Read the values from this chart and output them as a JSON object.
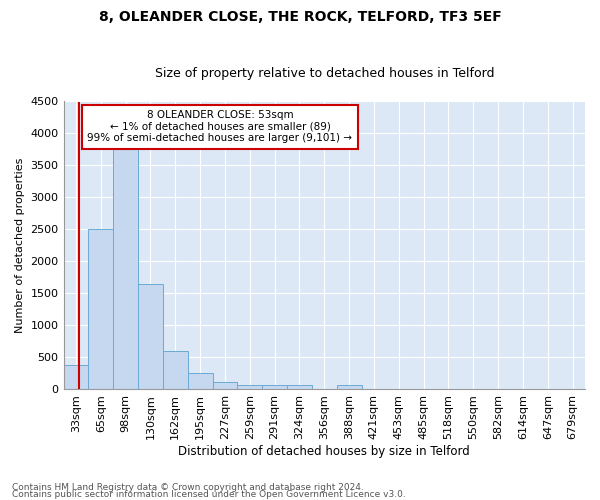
{
  "title": "8, OLEANDER CLOSE, THE ROCK, TELFORD, TF3 5EF",
  "subtitle": "Size of property relative to detached houses in Telford",
  "xlabel": "Distribution of detached houses by size in Telford",
  "ylabel": "Number of detached properties",
  "categories": [
    "33sqm",
    "65sqm",
    "98sqm",
    "130sqm",
    "162sqm",
    "195sqm",
    "227sqm",
    "259sqm",
    "291sqm",
    "324sqm",
    "356sqm",
    "388sqm",
    "421sqm",
    "453sqm",
    "485sqm",
    "518sqm",
    "550sqm",
    "582sqm",
    "614sqm",
    "647sqm",
    "679sqm"
  ],
  "values": [
    375,
    2500,
    3750,
    1650,
    600,
    250,
    110,
    65,
    55,
    55,
    0,
    55,
    0,
    0,
    0,
    0,
    0,
    0,
    0,
    0,
    0
  ],
  "bar_color": "#c5d8f0",
  "bar_edgecolor": "#6aaad4",
  "background_color": "#dce8f5",
  "ylim": [
    0,
    4500
  ],
  "yticks": [
    0,
    500,
    1000,
    1500,
    2000,
    2500,
    3000,
    3500,
    4000,
    4500
  ],
  "annotation_text": "8 OLEANDER CLOSE: 53sqm\n← 1% of detached houses are smaller (89)\n99% of semi-detached houses are larger (9,101) →",
  "annotation_box_color": "#cc0000",
  "footnote1": "Contains HM Land Registry data © Crown copyright and database right 2024.",
  "footnote2": "Contains public sector information licensed under the Open Government Licence v3.0.",
  "title_fontsize": 10,
  "subtitle_fontsize": 9,
  "xlabel_fontsize": 8.5,
  "ylabel_fontsize": 8,
  "annot_fontsize": 7.5,
  "footnote_fontsize": 6.5
}
